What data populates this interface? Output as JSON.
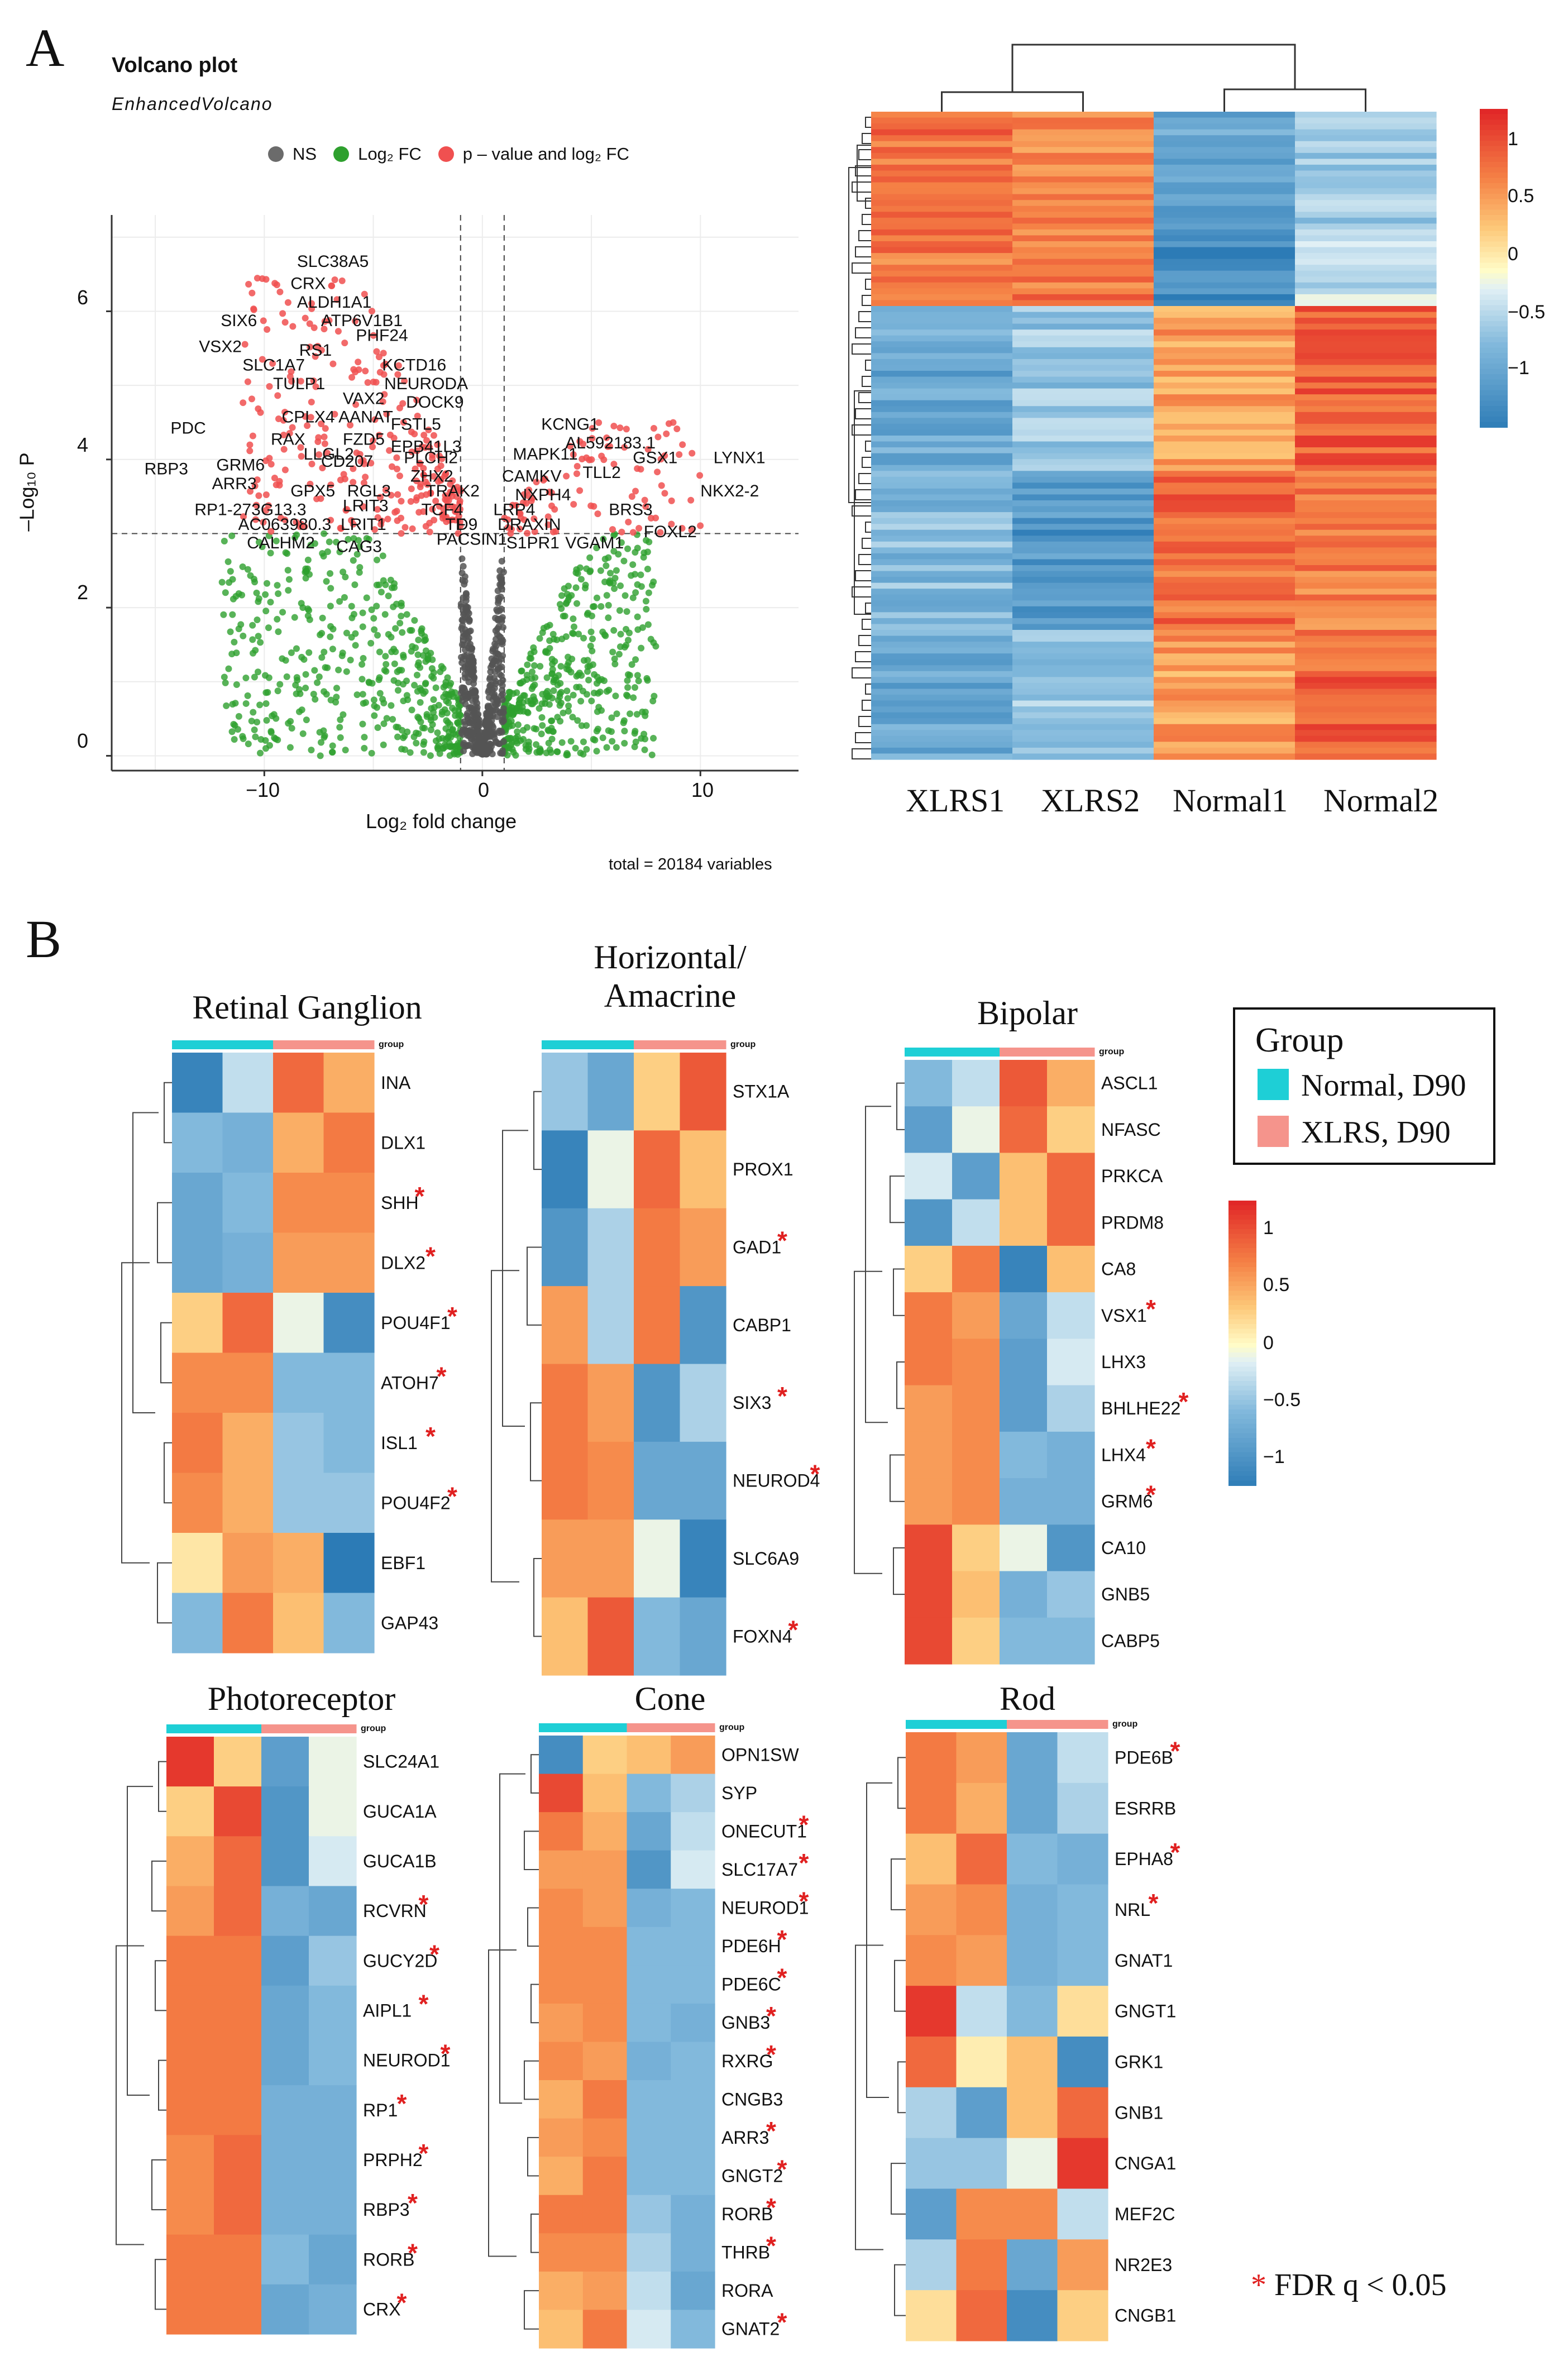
{
  "panelA": {
    "letter": "A",
    "volcano": {
      "title": "Volcano plot",
      "subtitle": "EnhancedVolcano",
      "legend": [
        "NS",
        "Log₂ FC",
        "p – value and log₂ FC"
      ],
      "legend_colors": [
        "#6b6b6b",
        "#2ea02e",
        "#f05050"
      ],
      "xlabel": "Log₂ fold change",
      "ylabel": "–Log₁₀ P",
      "xticks": [
        "−10",
        "0",
        "10"
      ],
      "yticks": [
        "0",
        "2",
        "4",
        "6"
      ],
      "footer": "total = 20184 variables",
      "gene_labels": [
        "SLC38A5",
        "CRX",
        "ALDH1A1",
        "ATP6V1B1",
        "SIX6",
        "VSX2",
        "RS1",
        "PHF24",
        "SLC1A7",
        "KCTD16",
        "TULP1",
        "NEURODA",
        "VAX2",
        "DOCK9",
        "CPLX4",
        "AANAT",
        "FSTL5",
        "PDC",
        "RAX",
        "FZD5",
        "EPB41L3",
        "KCNG1",
        "AL592183.1",
        "MAPK11",
        "GSX1",
        "LYNX1",
        "RBP3",
        "ARR3",
        "GRM6",
        "LLGL2",
        "CD207",
        "PLCH2",
        "CAMKV",
        "TLL2",
        "GPX5",
        "RGL3",
        "ZHX2",
        "NXPH4",
        "NKX2-2",
        "RP1-273G13.3",
        "LRIT3",
        "TRAK2",
        "LRP4",
        "BRS3",
        "AC063980.3",
        "LRIT1",
        "TCF4",
        "TF",
        "D9",
        "DRAXIN",
        "FOXL2",
        "CALHM2",
        "CAG3",
        "PACSIN1",
        "S1PR1",
        "VGAM1"
      ]
    },
    "heatmap": {
      "columns": [
        "XLRS1",
        "XLRS2",
        "Normal1",
        "Normal2"
      ],
      "scale_ticks": [
        "1",
        "0.5",
        "0",
        "−0.5",
        "−1"
      ]
    }
  },
  "panelB": {
    "letter": "B",
    "group_legend": {
      "title": "Group",
      "items": [
        {
          "label": "Normal, D90",
          "color": "#1ecfd6"
        },
        {
          "label": "XLRS, D90",
          "color": "#f5948c"
        }
      ]
    },
    "scale_ticks": [
      "1",
      "0.5",
      "0",
      "−0.5",
      "−1"
    ],
    "footnote_star": "*",
    "footnote": "FDR q < 0.05",
    "group_label": "group",
    "heatmaps": [
      {
        "title": "Retinal Ganglion",
        "genes": [
          {
            "name": "INA",
            "sig": false,
            "v": [
              -1.2,
              -0.3,
              0.9,
              0.5
            ]
          },
          {
            "name": "DLX1",
            "sig": false,
            "v": [
              -0.6,
              -0.7,
              0.5,
              0.8
            ]
          },
          {
            "name": "SHH",
            "sig": true,
            "v": [
              -0.8,
              -0.6,
              0.7,
              0.7
            ]
          },
          {
            "name": "DLX2",
            "sig": true,
            "v": [
              -0.8,
              -0.7,
              0.6,
              0.6
            ]
          },
          {
            "name": "POU4F1",
            "sig": true,
            "v": [
              0.3,
              0.9,
              -0.1,
              -1.1
            ]
          },
          {
            "name": "ATOH7",
            "sig": true,
            "v": [
              0.7,
              0.7,
              -0.6,
              -0.6
            ]
          },
          {
            "name": "ISL1",
            "sig": true,
            "v": [
              0.8,
              0.5,
              -0.5,
              -0.6
            ]
          },
          {
            "name": "POU4F2",
            "sig": true,
            "v": [
              0.7,
              0.5,
              -0.5,
              -0.5
            ]
          },
          {
            "name": "EBF1",
            "sig": false,
            "v": [
              0.15,
              0.6,
              0.5,
              -1.3
            ]
          },
          {
            "name": "GAP43",
            "sig": false,
            "v": [
              -0.6,
              0.8,
              0.4,
              -0.6
            ]
          }
        ]
      },
      {
        "title": "Horizontal/ Amacrine",
        "genes": [
          {
            "name": "STX1A",
            "sig": false,
            "v": [
              -0.5,
              -0.8,
              0.3,
              1.0
            ]
          },
          {
            "name": "PROX1",
            "sig": false,
            "v": [
              -1.2,
              -0.1,
              0.9,
              0.4
            ]
          },
          {
            "name": "GAD1",
            "sig": true,
            "v": [
              -1.0,
              -0.4,
              0.8,
              0.6
            ]
          },
          {
            "name": "CABP1",
            "sig": false,
            "v": [
              0.6,
              -0.4,
              0.8,
              -1.0
            ]
          },
          {
            "name": "SIX3",
            "sig": true,
            "v": [
              0.8,
              0.6,
              -1.0,
              -0.4
            ]
          },
          {
            "name": "NEUROD4",
            "sig": true,
            "v": [
              0.8,
              0.7,
              -0.8,
              -0.8
            ]
          },
          {
            "name": "SLC6A9",
            "sig": false,
            "v": [
              0.6,
              0.6,
              -0.1,
              -1.2
            ]
          },
          {
            "name": "FOXN4",
            "sig": true,
            "v": [
              0.4,
              1.0,
              -0.6,
              -0.8
            ]
          }
        ]
      },
      {
        "title": "Bipolar",
        "genes": [
          {
            "name": "ASCL1",
            "sig": false,
            "v": [
              -0.6,
              -0.3,
              1.0,
              0.5
            ]
          },
          {
            "name": "NFASC",
            "sig": false,
            "v": [
              -0.9,
              -0.1,
              0.9,
              0.3
            ]
          },
          {
            "name": "PRKCA",
            "sig": false,
            "v": [
              -0.2,
              -0.9,
              0.4,
              0.9
            ]
          },
          {
            "name": "PRDM8",
            "sig": false,
            "v": [
              -1.0,
              -0.3,
              0.4,
              0.9
            ]
          },
          {
            "name": "CA8",
            "sig": false,
            "v": [
              0.3,
              0.8,
              -1.2,
              0.4
            ]
          },
          {
            "name": "VSX1",
            "sig": true,
            "v": [
              0.8,
              0.6,
              -0.8,
              -0.3
            ]
          },
          {
            "name": "LHX3",
            "sig": false,
            "v": [
              0.8,
              0.7,
              -0.9,
              -0.2
            ]
          },
          {
            "name": "BHLHE22",
            "sig": true,
            "v": [
              0.6,
              0.7,
              -0.9,
              -0.4
            ]
          },
          {
            "name": "LHX4",
            "sig": true,
            "v": [
              0.6,
              0.7,
              -0.6,
              -0.7
            ]
          },
          {
            "name": "GRM6",
            "sig": true,
            "v": [
              0.6,
              0.7,
              -0.7,
              -0.7
            ]
          },
          {
            "name": "CA10",
            "sig": false,
            "v": [
              1.1,
              0.3,
              -0.1,
              -1.0
            ]
          },
          {
            "name": "GNB5",
            "sig": false,
            "v": [
              1.1,
              0.4,
              -0.7,
              -0.5
            ]
          },
          {
            "name": "CABP5",
            "sig": false,
            "v": [
              1.1,
              0.3,
              -0.6,
              -0.6
            ]
          }
        ]
      },
      {
        "title": "Photoreceptor",
        "genes": [
          {
            "name": "SLC24A1",
            "sig": false,
            "v": [
              1.2,
              0.3,
              -0.9,
              -0.1
            ]
          },
          {
            "name": "GUCA1A",
            "sig": false,
            "v": [
              0.3,
              1.1,
              -1.0,
              -0.1
            ]
          },
          {
            "name": "GUCA1B",
            "sig": false,
            "v": [
              0.5,
              0.9,
              -1.0,
              -0.2
            ]
          },
          {
            "name": "RCVRN",
            "sig": true,
            "v": [
              0.6,
              0.9,
              -0.7,
              -0.8
            ]
          },
          {
            "name": "GUCY2D",
            "sig": true,
            "v": [
              0.8,
              0.8,
              -0.9,
              -0.5
            ]
          },
          {
            "name": "AIPL1",
            "sig": true,
            "v": [
              0.8,
              0.8,
              -0.8,
              -0.6
            ]
          },
          {
            "name": "NEUROD1",
            "sig": true,
            "v": [
              0.8,
              0.8,
              -0.8,
              -0.6
            ]
          },
          {
            "name": "RP1",
            "sig": true,
            "v": [
              0.8,
              0.8,
              -0.7,
              -0.7
            ]
          },
          {
            "name": "PRPH2",
            "sig": true,
            "v": [
              0.7,
              0.9,
              -0.7,
              -0.7
            ]
          },
          {
            "name": "RBP3",
            "sig": true,
            "v": [
              0.7,
              0.9,
              -0.7,
              -0.7
            ]
          },
          {
            "name": "RORB",
            "sig": true,
            "v": [
              0.8,
              0.8,
              -0.6,
              -0.8
            ]
          },
          {
            "name": "CRX",
            "sig": true,
            "v": [
              0.8,
              0.8,
              -0.8,
              -0.7
            ]
          }
        ]
      },
      {
        "title": "Cone",
        "genes": [
          {
            "name": "OPN1SW",
            "sig": false,
            "v": [
              -1.1,
              0.3,
              0.4,
              0.6
            ]
          },
          {
            "name": "SYP",
            "sig": false,
            "v": [
              1.1,
              0.4,
              -0.6,
              -0.4
            ]
          },
          {
            "name": "ONECUT1",
            "sig": true,
            "v": [
              0.8,
              0.5,
              -0.8,
              -0.3
            ]
          },
          {
            "name": "SLC17A7",
            "sig": true,
            "v": [
              0.6,
              0.6,
              -1.0,
              -0.2
            ]
          },
          {
            "name": "NEUROD1",
            "sig": true,
            "v": [
              0.7,
              0.6,
              -0.7,
              -0.6
            ]
          },
          {
            "name": "PDE6H",
            "sig": true,
            "v": [
              0.7,
              0.7,
              -0.6,
              -0.6
            ]
          },
          {
            "name": "PDE6C",
            "sig": true,
            "v": [
              0.7,
              0.7,
              -0.6,
              -0.6
            ]
          },
          {
            "name": "GNB3",
            "sig": true,
            "v": [
              0.6,
              0.7,
              -0.6,
              -0.7
            ]
          },
          {
            "name": "RXRG",
            "sig": true,
            "v": [
              0.7,
              0.6,
              -0.7,
              -0.6
            ]
          },
          {
            "name": "CNGB3",
            "sig": false,
            "v": [
              0.5,
              0.8,
              -0.6,
              -0.6
            ]
          },
          {
            "name": "ARR3",
            "sig": true,
            "v": [
              0.6,
              0.7,
              -0.6,
              -0.6
            ]
          },
          {
            "name": "GNGT2",
            "sig": true,
            "v": [
              0.5,
              0.8,
              -0.6,
              -0.6
            ]
          },
          {
            "name": "RORB",
            "sig": true,
            "v": [
              0.8,
              0.8,
              -0.5,
              -0.7
            ]
          },
          {
            "name": "THRB",
            "sig": true,
            "v": [
              0.7,
              0.7,
              -0.4,
              -0.7
            ]
          },
          {
            "name": "RORA",
            "sig": false,
            "v": [
              0.5,
              0.6,
              -0.3,
              -0.8
            ]
          },
          {
            "name": "GNAT2",
            "sig": true,
            "v": [
              0.4,
              0.8,
              -0.2,
              -0.6
            ]
          }
        ]
      },
      {
        "title": "Rod",
        "genes": [
          {
            "name": "PDE6B",
            "sig": true,
            "v": [
              0.8,
              0.6,
              -0.8,
              -0.3
            ]
          },
          {
            "name": "ESRRB",
            "sig": false,
            "v": [
              0.8,
              0.5,
              -0.8,
              -0.4
            ]
          },
          {
            "name": "EPHA8",
            "sig": true,
            "v": [
              0.4,
              0.9,
              -0.6,
              -0.7
            ]
          },
          {
            "name": "NRL",
            "sig": true,
            "v": [
              0.6,
              0.7,
              -0.7,
              -0.6
            ]
          },
          {
            "name": "GNAT1",
            "sig": false,
            "v": [
              0.7,
              0.6,
              -0.7,
              -0.6
            ]
          },
          {
            "name": "GNGT1",
            "sig": false,
            "v": [
              1.2,
              -0.3,
              -0.6,
              0.2
            ]
          },
          {
            "name": "GRK1",
            "sig": false,
            "v": [
              0.9,
              0.1,
              0.4,
              -1.1
            ]
          },
          {
            "name": "GNB1",
            "sig": false,
            "v": [
              -0.4,
              -0.9,
              0.4,
              0.9
            ]
          },
          {
            "name": "CNGA1",
            "sig": false,
            "v": [
              -0.5,
              -0.5,
              -0.1,
              1.2
            ]
          },
          {
            "name": "MEF2C",
            "sig": false,
            "v": [
              -0.9,
              0.7,
              0.7,
              -0.3
            ]
          },
          {
            "name": "NR2E3",
            "sig": false,
            "v": [
              -0.4,
              0.8,
              -0.8,
              0.6
            ]
          },
          {
            "name": "CNGB1",
            "sig": false,
            "v": [
              0.2,
              0.9,
              -1.1,
              0.3
            ]
          }
        ]
      }
    ]
  }
}
